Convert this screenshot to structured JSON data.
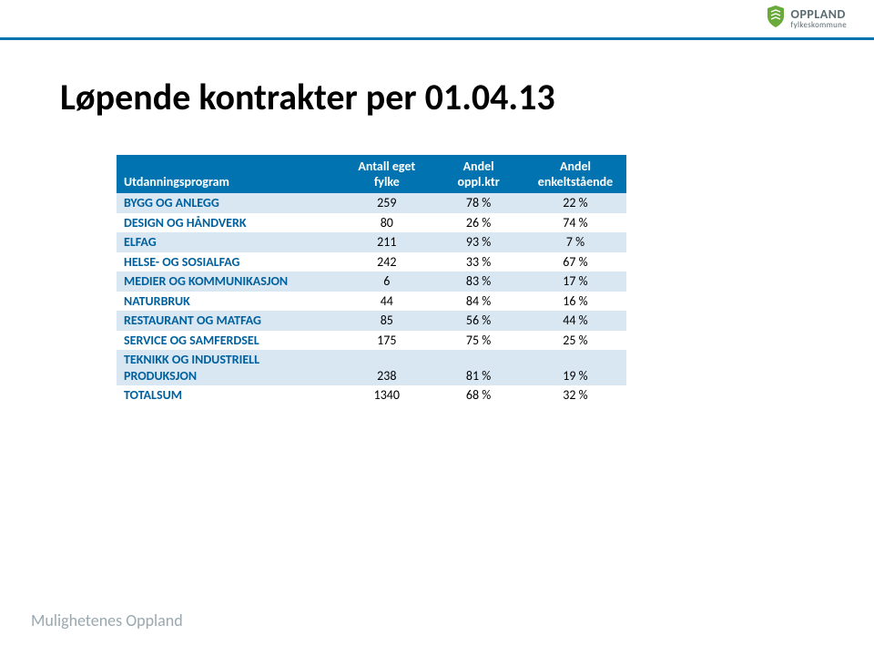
{
  "colors": {
    "topbar_border": "#0073b0",
    "header_bg": "#0073b0",
    "header_text": "#ffffff",
    "row_alt_bg": "#d9e7f3",
    "row_bg": "#ffffff",
    "label_color": "#00619e",
    "num_color": "#000000",
    "footer_color": "#9aa9b0",
    "logo_green": "#6aaa3a",
    "logo_dark": "#5a6b72"
  },
  "logo": {
    "main": "OPPLAND",
    "sub": "fylkeskommune"
  },
  "title": "Løpende kontrakter per 01.04.13",
  "table": {
    "columns": [
      "Utdanningsprogram",
      "Antall eget fylke",
      "Andel oppl.ktr",
      "Andel enkeltstående"
    ],
    "col_widths": [
      "44%",
      "18%",
      "18%",
      "20%"
    ],
    "rows": [
      {
        "label": "BYGG OG ANLEGG",
        "c1": "259",
        "c2": "78 %",
        "c3": "22 %"
      },
      {
        "label": "DESIGN OG HÅNDVERK",
        "c1": "80",
        "c2": "26 %",
        "c3": "74 %"
      },
      {
        "label": "ELFAG",
        "c1": "211",
        "c2": "93 %",
        "c3": "7 %"
      },
      {
        "label": "HELSE- OG SOSIALFAG",
        "c1": "242",
        "c2": "33 %",
        "c3": "67 %"
      },
      {
        "label": "MEDIER OG KOMMUNIKASJON",
        "c1": "6",
        "c2": "83 %",
        "c3": "17 %"
      },
      {
        "label": "NATURBRUK",
        "c1": "44",
        "c2": "84 %",
        "c3": "16 %"
      },
      {
        "label": "RESTAURANT OG MATFAG",
        "c1": "85",
        "c2": "56 %",
        "c3": "44 %"
      },
      {
        "label": "SERVICE OG SAMFERDSEL",
        "c1": "175",
        "c2": "75 %",
        "c3": "25 %"
      },
      {
        "label": "TEKNIKK OG INDUSTRIELL PRODUKSJON",
        "c1": "238",
        "c2": "81 %",
        "c3": "19 %"
      },
      {
        "label": "TOTALSUM",
        "c1": "1340",
        "c2": "68 %",
        "c3": "32 %"
      }
    ]
  },
  "footer": "Mulighetenes Oppland"
}
